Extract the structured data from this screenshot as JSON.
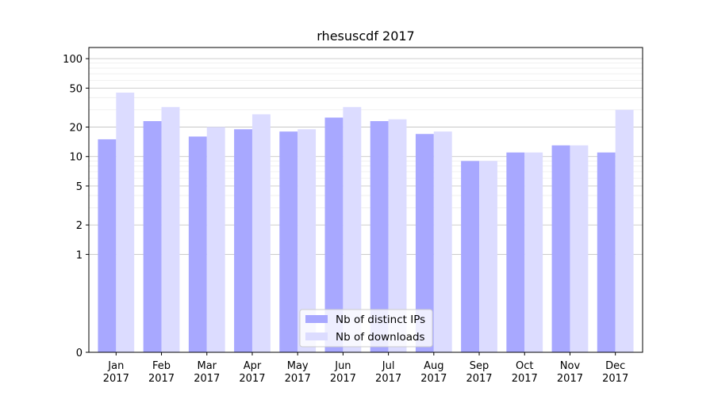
{
  "chart_data": {
    "type": "bar",
    "title": "rhesuscdf 2017",
    "xlabel": "",
    "ylabel": "",
    "yscale": "symlog",
    "categories": [
      "Jan\n2017",
      "Feb\n2017",
      "Mar\n2017",
      "Apr\n2017",
      "May\n2017",
      "Jun\n2017",
      "Jul\n2017",
      "Aug\n2017",
      "Sep\n2017",
      "Oct\n2017",
      "Nov\n2017",
      "Dec\n2017"
    ],
    "series": [
      {
        "name": "Nb of distinct IPs",
        "color": "#a8a8ff",
        "values": [
          15,
          23,
          16,
          19,
          18,
          25,
          23,
          17,
          9,
          11,
          13,
          11
        ]
      },
      {
        "name": "Nb of downloads",
        "color": "#dcdcff",
        "values": [
          45,
          32,
          20,
          27,
          19,
          32,
          24,
          18,
          9,
          11,
          13,
          30
        ]
      }
    ],
    "yticks": [
      0,
      1,
      2,
      5,
      10,
      20,
      50,
      100
    ],
    "ylim": [
      0,
      130
    ],
    "grid": true,
    "legend_position": "lower-center"
  }
}
